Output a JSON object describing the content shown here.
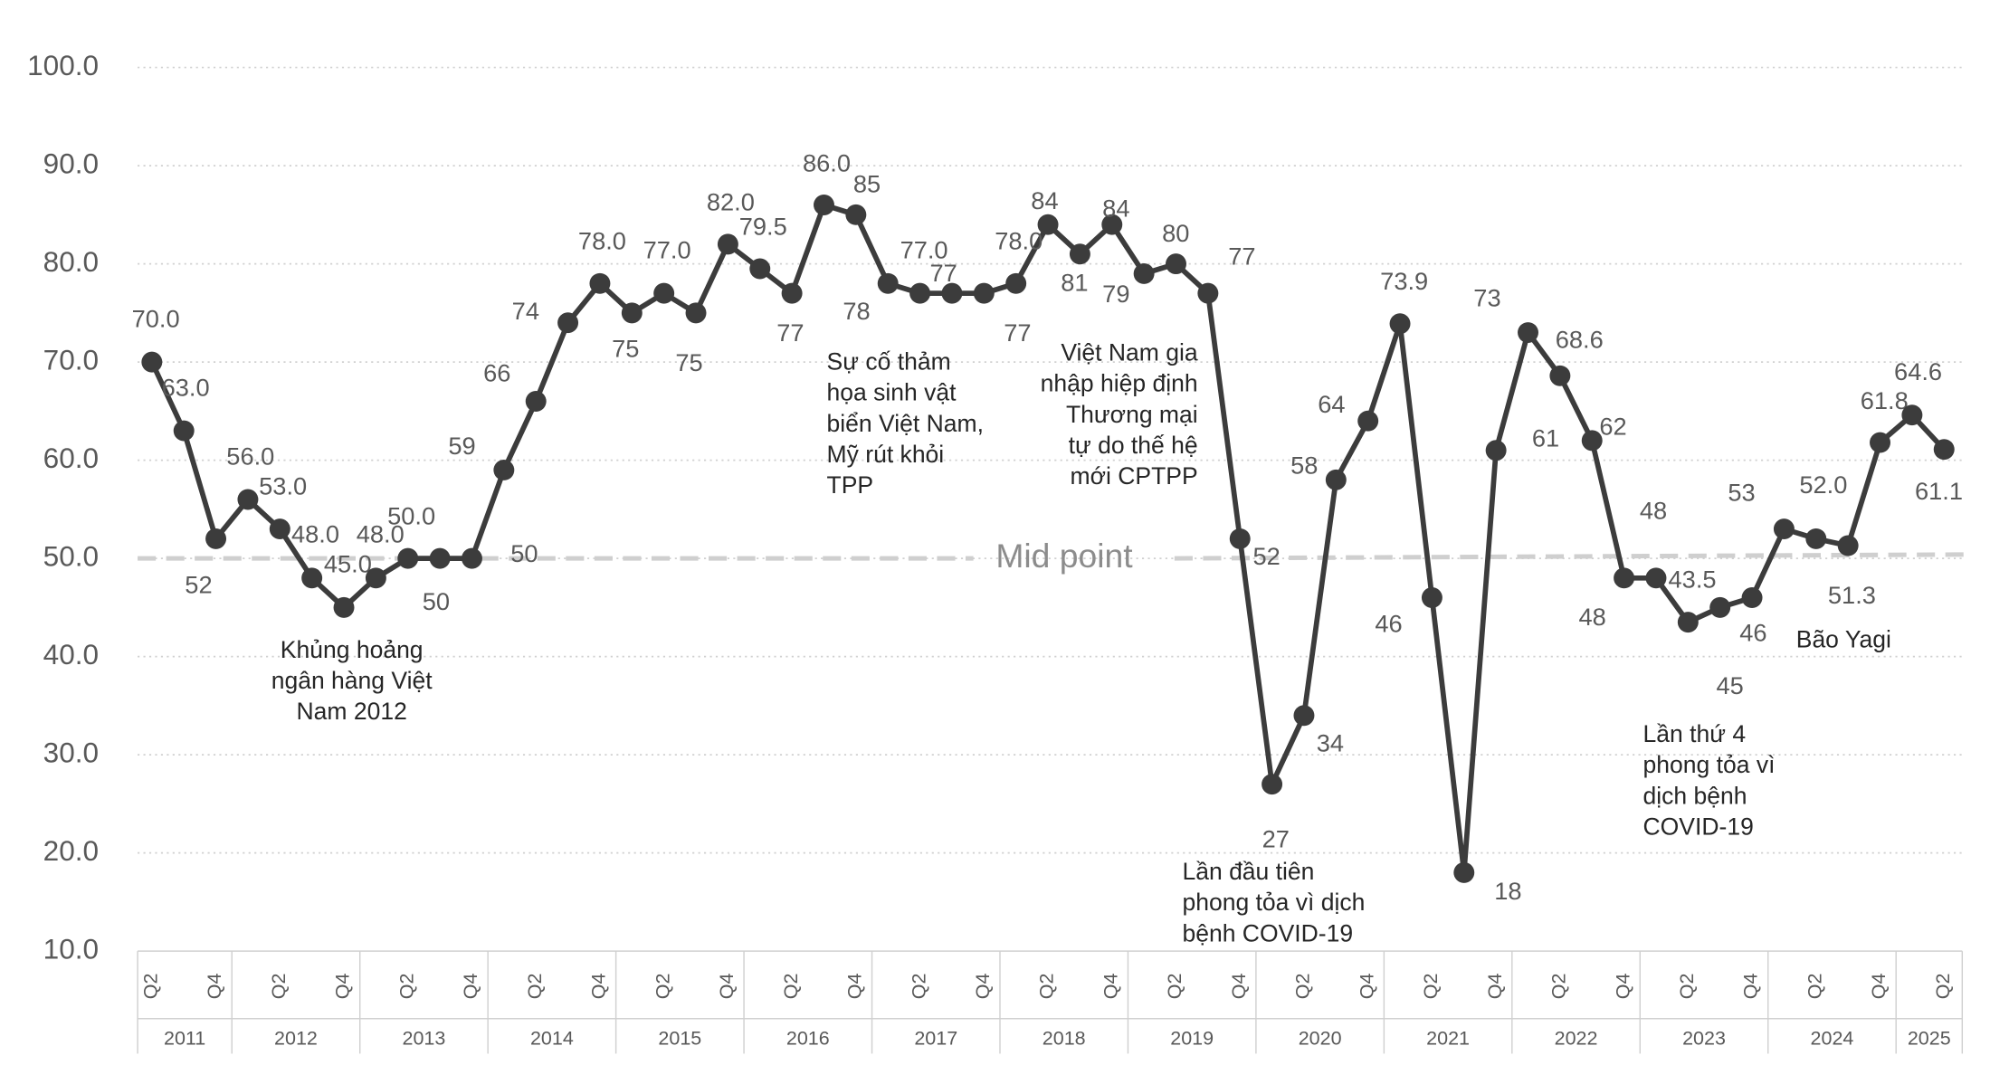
{
  "chart_data": {
    "type": "line",
    "categories": [
      "Q2",
      null,
      "Q4",
      null,
      "Q2",
      null,
      "Q4",
      null,
      "Q2",
      null,
      "Q4",
      null,
      "Q2",
      null,
      "Q4",
      null,
      "Q2",
      null,
      "Q4",
      null,
      "Q2",
      null,
      "Q4",
      null,
      "Q2",
      null,
      "Q4",
      null,
      "Q2",
      null,
      "Q4",
      null,
      "Q2",
      null,
      "Q4",
      null,
      "Q2",
      null,
      "Q4",
      null,
      "Q2",
      null,
      "Q4",
      null,
      "Q2",
      null,
      "Q4",
      null,
      "Q2",
      null,
      "Q4",
      null,
      "Q2",
      null,
      "Q4",
      null,
      "Q2"
    ],
    "years": [
      "2011",
      "2012",
      "2013",
      "2014",
      "2015",
      "2016",
      "2017",
      "2018",
      "2019",
      "2020",
      "2021",
      "2022",
      "2023",
      "2024",
      "2025"
    ],
    "values": [
      70,
      63,
      52,
      56,
      53,
      48,
      45,
      48,
      50,
      50,
      50,
      59,
      66,
      74,
      78,
      75,
      77,
      75,
      82,
      79.5,
      77,
      86,
      85,
      78,
      77,
      77,
      77,
      78,
      84,
      81,
      84,
      79,
      80,
      77,
      52,
      27,
      34,
      58,
      64,
      73.9,
      46,
      18,
      61,
      73,
      68.6,
      62,
      48,
      48,
      43.5,
      45,
      46,
      53,
      52,
      51.3,
      61.8,
      64.6,
      61.1
    ],
    "value_labels": [
      "70.0",
      "63.0",
      "52",
      "56.0",
      "53.0",
      "48.0",
      "45.0",
      "48.0",
      "50.0",
      "50",
      "50",
      "59",
      "66",
      "74",
      "78.0",
      "75",
      "77.0",
      "75",
      "82.0",
      "79.5",
      "77",
      "86.0",
      "85",
      "78",
      "77.0",
      "77",
      "77",
      "78.0",
      "84",
      "81",
      "84",
      "79",
      "80",
      "77",
      "52",
      "27",
      "34",
      "58",
      "64",
      "73.9",
      "46",
      "18",
      "61",
      "73",
      "68.6",
      "62",
      "48",
      "48",
      "43.5",
      "45",
      "46",
      "53",
      "52.0",
      "51.3",
      "61.8",
      "64.6",
      "61.1"
    ],
    "color": "#3c3c3c",
    "ylim": [
      10,
      100
    ],
    "yticks": [
      {
        "value": 10,
        "label": "10.0"
      },
      {
        "value": 20,
        "label": "20.0"
      },
      {
        "value": 30,
        "label": "30.0"
      },
      {
        "value": 40,
        "label": "40.0"
      },
      {
        "value": 50,
        "label": "50.0"
      },
      {
        "value": 60,
        "label": "60.0"
      },
      {
        "value": 70,
        "label": "70.0"
      },
      {
        "value": 80,
        "label": "80.0"
      },
      {
        "value": 90,
        "label": "90.0"
      },
      {
        "value": 100,
        "label": "100.0"
      }
    ],
    "grid": true,
    "reference_line": {
      "value": 50,
      "label": "Mid point"
    },
    "annotations": [
      {
        "lines": [
          "Khủng hoảng",
          "ngân hàng Việt",
          "Nam 2012"
        ]
      },
      {
        "lines": [
          "Sự cố thảm",
          "họa sinh vật",
          "biển Việt Nam,",
          "Mỹ rút khỏi",
          "TPP"
        ]
      },
      {
        "lines": [
          "Việt Nam gia",
          "nhập hiệp định",
          "Thương mại",
          "tự do thế hệ",
          "mới CPTPP"
        ]
      },
      {
        "lines": [
          "Lần đầu tiên",
          "phong tỏa vì dịch",
          "bệnh COVID-19"
        ]
      },
      {
        "lines": [
          "Lần thứ 4",
          "phong tỏa vì",
          "dịch bệnh",
          "COVID-19"
        ]
      },
      {
        "lines": [
          "Bão Yagi"
        ]
      }
    ]
  }
}
